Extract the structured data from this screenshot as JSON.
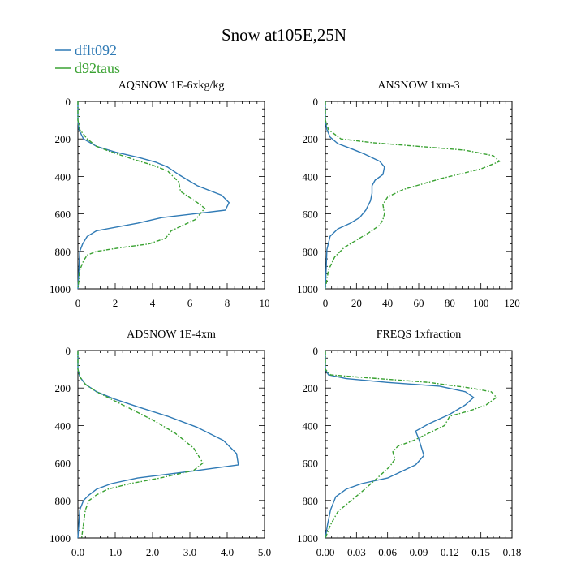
{
  "title": "Snow at105E,25N",
  "legend": [
    {
      "name": "dflt092",
      "color": "#2f7ab5",
      "dash": "solid"
    },
    {
      "name": "d92taus",
      "color": "#3aa232",
      "dash": "dashed"
    }
  ],
  "chart_data": [
    {
      "type": "line",
      "title": "AQSNOW  1E-6xkg/kg",
      "xlim": [
        0,
        10
      ],
      "ylim": [
        0,
        1000
      ],
      "y_inverted": true,
      "xticks": [
        0,
        2,
        4,
        6,
        8,
        10
      ],
      "xtick_labels": [
        "0",
        "2",
        "4",
        "6",
        "8",
        "10"
      ],
      "yticks": [
        0,
        200,
        400,
        600,
        800,
        1000
      ],
      "ytick_labels": [
        "0",
        "200",
        "400",
        "600",
        "800",
        "1000"
      ],
      "series": [
        {
          "name": "dflt092",
          "x": [
            0.0,
            0.0,
            0.05,
            0.3,
            1.0,
            2.0,
            3.3,
            4.2,
            4.8,
            5.4,
            6.4,
            7.7,
            8.1,
            7.9,
            4.5,
            3.2,
            1.0,
            0.5,
            0.25,
            0.1,
            0.05,
            0.0
          ],
          "y": [
            0,
            100,
            150,
            200,
            240,
            270,
            300,
            325,
            350,
            390,
            450,
            500,
            540,
            580,
            620,
            650,
            690,
            720,
            760,
            800,
            900,
            1000
          ]
        },
        {
          "name": "d92taus",
          "x": [
            0.0,
            0.0,
            0.1,
            0.5,
            1.0,
            1.8,
            3.0,
            4.0,
            4.8,
            5.4,
            5.5,
            6.4,
            6.8,
            6.3,
            5.0,
            4.7,
            3.8,
            2.3,
            1.0,
            0.5,
            0.3,
            0.1,
            0.0
          ],
          "y": [
            0,
            100,
            150,
            200,
            240,
            270,
            310,
            340,
            370,
            430,
            480,
            540,
            570,
            630,
            690,
            730,
            760,
            780,
            800,
            820,
            850,
            900,
            1000
          ]
        }
      ]
    },
    {
      "type": "line",
      "title": "ANSNOW  1xm-3",
      "xlim": [
        0,
        120
      ],
      "ylim": [
        0,
        1000
      ],
      "y_inverted": true,
      "xticks": [
        0,
        20,
        40,
        60,
        80,
        100,
        120
      ],
      "xtick_labels": [
        "0",
        "20",
        "40",
        "60",
        "80",
        "100",
        "120"
      ],
      "yticks": [
        0,
        200,
        400,
        600,
        800,
        1000
      ],
      "ytick_labels": [
        "0",
        "200",
        "400",
        "600",
        "800",
        "1000"
      ],
      "series": [
        {
          "name": "dflt092",
          "x": [
            0,
            0,
            1,
            3,
            8,
            16,
            25,
            35,
            38,
            37,
            32,
            30,
            30,
            29,
            26,
            22,
            16,
            8,
            3,
            1,
            0
          ],
          "y": [
            0,
            100,
            150,
            190,
            225,
            250,
            280,
            320,
            350,
            390,
            420,
            450,
            490,
            530,
            580,
            620,
            650,
            680,
            720,
            790,
            1000
          ]
        },
        {
          "name": "d92taus",
          "x": [
            0,
            0,
            2,
            10,
            30,
            60,
            90,
            108,
            112,
            100,
            75,
            50,
            40,
            37,
            38,
            37,
            35,
            28,
            20,
            12,
            6,
            2,
            0
          ],
          "y": [
            0,
            100,
            150,
            200,
            220,
            240,
            260,
            290,
            320,
            360,
            410,
            470,
            510,
            550,
            600,
            630,
            660,
            700,
            740,
            780,
            830,
            900,
            1000
          ]
        }
      ]
    },
    {
      "type": "line",
      "title": "ADSNOW  1E-4xm",
      "xlim": [
        0,
        5
      ],
      "ylim": [
        0,
        1000
      ],
      "y_inverted": true,
      "xticks": [
        0,
        1,
        2,
        3,
        4,
        5
      ],
      "xtick_labels": [
        "0.0",
        "1.0",
        "2.0",
        "3.0",
        "4.0",
        "5.0"
      ],
      "yticks": [
        0,
        200,
        400,
        600,
        800,
        1000
      ],
      "ytick_labels": [
        "0",
        "200",
        "400",
        "600",
        "800",
        "1000"
      ],
      "series": [
        {
          "name": "dflt092",
          "x": [
            0.0,
            0.0,
            0.05,
            0.2,
            0.5,
            1.0,
            1.6,
            2.4,
            3.2,
            3.9,
            4.25,
            4.3,
            3.2,
            1.6,
            0.9,
            0.5,
            0.3,
            0.15,
            0.05,
            0.0
          ],
          "y": [
            0,
            100,
            140,
            180,
            220,
            260,
            300,
            350,
            410,
            480,
            550,
            610,
            640,
            680,
            710,
            740,
            770,
            800,
            850,
            1000
          ]
        },
        {
          "name": "d92taus",
          "x": [
            0.0,
            0.0,
            0.05,
            0.2,
            0.5,
            0.9,
            1.4,
            2.0,
            2.6,
            3.1,
            3.35,
            3.1,
            2.2,
            1.4,
            0.8,
            0.5,
            0.3,
            0.2,
            0.1
          ],
          "y": [
            0,
            100,
            140,
            180,
            220,
            260,
            310,
            370,
            440,
            520,
            600,
            640,
            680,
            710,
            740,
            770,
            800,
            850,
            1000
          ]
        }
      ]
    },
    {
      "type": "line",
      "title": "FREQS  1xfraction",
      "xlim": [
        0,
        0.18
      ],
      "ylim": [
        0,
        1000
      ],
      "y_inverted": true,
      "xticks": [
        0,
        0.03,
        0.06,
        0.09,
        0.12,
        0.15,
        0.18
      ],
      "xtick_labels": [
        "0.00",
        "0.03",
        "0.06",
        "0.09",
        "0.12",
        "0.15",
        "0.18"
      ],
      "yticks": [
        0,
        200,
        400,
        600,
        800,
        1000
      ],
      "ytick_labels": [
        "0",
        "200",
        "400",
        "600",
        "800",
        "1000"
      ],
      "series": [
        {
          "name": "dflt092",
          "x": [
            0,
            0,
            0.003,
            0.02,
            0.06,
            0.11,
            0.135,
            0.143,
            0.135,
            0.12,
            0.1,
            0.087,
            0.09,
            0.095,
            0.087,
            0.06,
            0.035,
            0.02,
            0.01,
            0.005,
            0.002,
            0.0
          ],
          "y": [
            0,
            100,
            130,
            150,
            170,
            190,
            220,
            250,
            290,
            340,
            390,
            430,
            470,
            560,
            610,
            680,
            710,
            740,
            780,
            850,
            930,
            1000
          ]
        },
        {
          "name": "d92taus",
          "x": [
            0,
            0,
            0.005,
            0.04,
            0.1,
            0.14,
            0.16,
            0.165,
            0.155,
            0.14,
            0.12,
            0.115,
            0.1,
            0.085,
            0.07,
            0.065,
            0.067,
            0.062,
            0.05,
            0.038,
            0.025,
            0.012,
            0.005,
            0.0
          ],
          "y": [
            0,
            100,
            130,
            145,
            170,
            200,
            220,
            250,
            290,
            320,
            350,
            400,
            440,
            480,
            510,
            540,
            580,
            620,
            680,
            740,
            800,
            860,
            930,
            1000
          ]
        }
      ]
    }
  ]
}
